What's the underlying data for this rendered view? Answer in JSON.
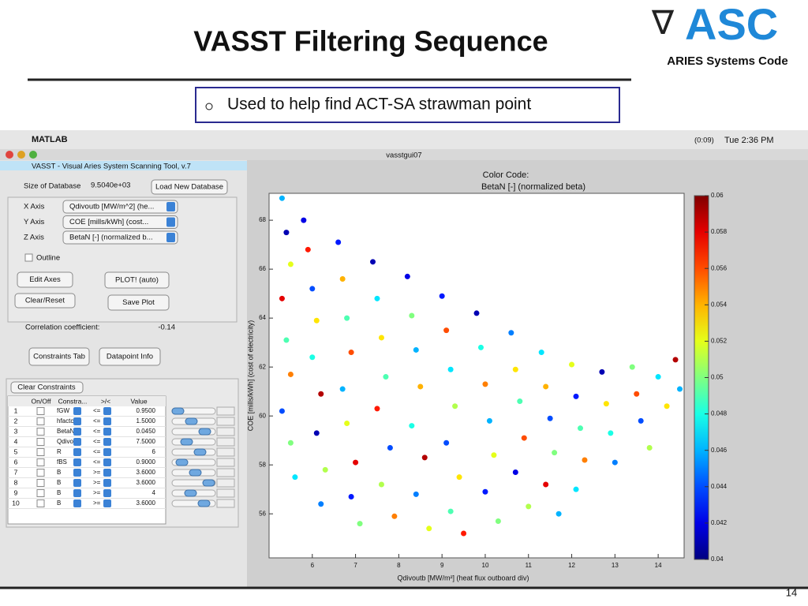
{
  "slide": {
    "title": "VASST Filtering Sequence",
    "logo": "ASC",
    "logo_caption": "ARIES Systems Code",
    "bullet": "Used to help find ACT-SA strawman point",
    "page_number": "14"
  },
  "menubar": {
    "app": "MATLAB",
    "timer": "(0:09)",
    "clock": "Tue 2:36 PM"
  },
  "window": {
    "title": "vasstgui07"
  },
  "panel": {
    "header": "VASST - Visual Aries System Scanning Tool, v.7",
    "db_label": "Size of Database",
    "db_size": "9.5040e+03",
    "load_button": "Load New Database",
    "axes": [
      {
        "label": "X Axis",
        "value": "Qdivoutb [MW/m^2] (he..."
      },
      {
        "label": "Y Axis",
        "value": "COE [mills/kWh] (cost..."
      },
      {
        "label": "Z Axis",
        "value": "BetaN [-] (normalized b..."
      }
    ],
    "outline": "Outline",
    "buttons": [
      "Edit Axes",
      "PLOT! (auto)",
      "Clear/Reset",
      "Save Plot"
    ],
    "corr_label": "Correlation coefficient:",
    "corr_value": "-0.14",
    "tab_buttons": [
      "Constraints Tab",
      "Datapoint Info"
    ],
    "clear_constraints": "Clear Constraints",
    "table": {
      "columns": [
        "On/Off",
        "Constra...",
        ">/<",
        "Value"
      ],
      "rows": [
        [
          "1",
          "fGW",
          "<=",
          "0.9500"
        ],
        [
          "2",
          "hfactc",
          "<=",
          "1.5000"
        ],
        [
          "3",
          "BetaN",
          "<=",
          "0.0450"
        ],
        [
          "4",
          "Qdivo",
          "<=",
          "7.5000"
        ],
        [
          "5",
          "R",
          "<=",
          "6"
        ],
        [
          "6",
          "fBS",
          "<=",
          "0.9000"
        ],
        [
          "7",
          "B",
          ">=",
          "3.6000"
        ],
        [
          "8",
          "B",
          ">=",
          "3.6000"
        ],
        [
          "9",
          "B",
          ">=",
          "4"
        ],
        [
          "10",
          "B",
          ">=",
          "3.6000"
        ]
      ]
    }
  },
  "chart_data": {
    "type": "scatter",
    "title": "Color Code:",
    "subtitle": "BetaN [-] (normalized beta)",
    "x_label": "Qdivoutb [MW/m²] (heat flux outboard div)",
    "y_label": "COE [mills/kWh] (cost of electricity)",
    "xlim": [
      5.0,
      14.6
    ],
    "ylim": [
      54.2,
      69.1
    ],
    "xticks": [
      6,
      7,
      8,
      9,
      10,
      11,
      12,
      13,
      14
    ],
    "yticks": [
      56,
      58,
      60,
      62,
      64,
      66,
      68
    ],
    "colormap": "jet",
    "clim": [
      0.04,
      0.06
    ],
    "cticks": [
      0.04,
      0.042,
      0.044,
      0.046,
      0.048,
      0.05,
      0.052,
      0.054,
      0.056,
      0.058,
      0.06
    ],
    "x": [
      5.3,
      5.4,
      5.5,
      5.3,
      5.4,
      5.5,
      5.3,
      5.5,
      5.6,
      5.8,
      5.9,
      6.0,
      6.1,
      6.0,
      6.2,
      6.1,
      6.3,
      6.2,
      6.6,
      6.7,
      6.8,
      6.9,
      6.7,
      6.8,
      7.0,
      6.9,
      7.1,
      7.4,
      7.5,
      7.6,
      7.7,
      7.5,
      7.8,
      7.6,
      7.9,
      8.2,
      8.3,
      8.4,
      8.5,
      8.3,
      8.6,
      8.4,
      8.7,
      9.0,
      9.1,
      9.2,
      9.3,
      9.1,
      9.4,
      9.2,
      9.5,
      9.8,
      9.9,
      10.0,
      10.1,
      10.2,
      10.0,
      10.3,
      10.6,
      10.7,
      10.8,
      10.9,
      10.7,
      11.0,
      11.3,
      11.4,
      11.5,
      11.6,
      11.4,
      11.7,
      12.0,
      12.1,
      12.2,
      12.3,
      12.1,
      12.7,
      12.8,
      12.9,
      13.0,
      13.4,
      13.5,
      13.6,
      13.8,
      14.0,
      14.2,
      14.4,
      14.5
    ],
    "values": [
      68.9,
      67.5,
      66.2,
      64.8,
      63.1,
      61.7,
      60.2,
      58.9,
      57.5,
      68.0,
      66.8,
      65.2,
      63.9,
      62.4,
      60.9,
      59.3,
      57.8,
      56.4,
      67.1,
      65.6,
      64.0,
      62.6,
      61.1,
      59.7,
      58.1,
      56.7,
      55.6,
      66.3,
      64.8,
      63.2,
      61.6,
      60.3,
      58.7,
      57.2,
      55.9,
      65.7,
      64.1,
      62.7,
      61.2,
      59.6,
      58.3,
      56.8,
      55.4,
      64.9,
      63.5,
      61.9,
      60.4,
      58.9,
      57.5,
      56.1,
      55.2,
      64.2,
      62.8,
      61.3,
      59.8,
      58.4,
      56.9,
      55.7,
      63.4,
      61.9,
      60.6,
      59.1,
      57.7,
      56.3,
      62.6,
      61.2,
      59.9,
      58.5,
      57.2,
      56.0,
      62.1,
      60.8,
      59.5,
      58.2,
      57.0,
      61.8,
      60.5,
      59.3,
      58.1,
      62.0,
      60.9,
      59.8,
      58.7,
      61.6,
      60.4,
      62.3,
      61.1
    ],
    "z": [
      0.046,
      0.041,
      0.052,
      0.058,
      0.049,
      0.055,
      0.044,
      0.05,
      0.047,
      0.042,
      0.057,
      0.044,
      0.053,
      0.048,
      0.059,
      0.041,
      0.051,
      0.045,
      0.043,
      0.054,
      0.049,
      0.056,
      0.046,
      0.052,
      0.058,
      0.043,
      0.05,
      0.041,
      0.047,
      0.053,
      0.049,
      0.057,
      0.044,
      0.051,
      0.055,
      0.042,
      0.05,
      0.046,
      0.054,
      0.048,
      0.059,
      0.045,
      0.052,
      0.043,
      0.056,
      0.047,
      0.051,
      0.044,
      0.053,
      0.049,
      0.057,
      0.041,
      0.048,
      0.055,
      0.046,
      0.052,
      0.043,
      0.05,
      0.045,
      0.053,
      0.049,
      0.056,
      0.042,
      0.051,
      0.047,
      0.054,
      0.044,
      0.05,
      0.058,
      0.046,
      0.052,
      0.043,
      0.049,
      0.055,
      0.047,
      0.041,
      0.053,
      0.048,
      0.045,
      0.05,
      0.056,
      0.044,
      0.051,
      0.047,
      0.053,
      0.059,
      0.046
    ]
  }
}
